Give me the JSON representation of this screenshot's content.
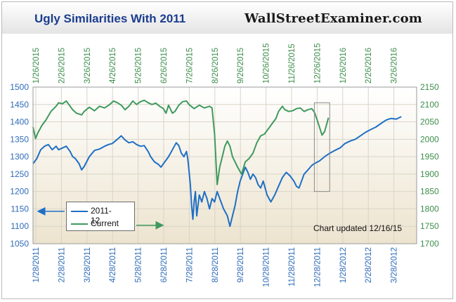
{
  "title": "Ugly Similarities With 2011",
  "brand": "WallStreetExaminer.com",
  "note": "Chart updated 12/16/15",
  "colors": {
    "series_2011": "#1f6fc5",
    "series_current": "#3e9a5d",
    "left_axis": "#2f6bb8",
    "right_axis": "#3d8d4a",
    "title": "#1b3d8f",
    "box": "#8a8a8a"
  },
  "chart_data": {
    "type": "line",
    "title": "Ugly Similarities With 2011",
    "x_top": {
      "ticks": [
        "1/26/2015",
        "2/26/2015",
        "3/26/2015",
        "4/26/2015",
        "5/26/2015",
        "6/26/2015",
        "7/26/2015",
        "8/26/2015",
        "9/26/2015",
        "10/26/2015",
        "11/26/2015",
        "12/26/2015",
        "1/26/2016",
        "2/26/2016",
        "3/26/2016"
      ]
    },
    "x_bottom": {
      "ticks": [
        "1/28/2011",
        "2/28/2011",
        "3/28/2011",
        "4/28/2011",
        "5/28/2011",
        "6/28/2011",
        "7/28/2011",
        "8/28/2011",
        "9/28/2011",
        "10/28/2011",
        "11/28/2011",
        "12/28/2011",
        "1/28/2012",
        "2/28/2012",
        "3/28/2012"
      ]
    },
    "y_left": {
      "min": 1050,
      "max": 1500,
      "ticks": [
        1050,
        1100,
        1150,
        1200,
        1250,
        1300,
        1350,
        1400,
        1450,
        1500
      ]
    },
    "y_right": {
      "min": 1700,
      "max": 2150,
      "ticks": [
        1700,
        1750,
        1800,
        1850,
        1900,
        1950,
        2000,
        2050,
        2100,
        2150
      ]
    },
    "grid": true,
    "legend": "bottom-left",
    "series": [
      {
        "name": "2011-12",
        "axis": "left",
        "points": [
          [
            0.0,
            1280
          ],
          [
            0.15,
            1295
          ],
          [
            0.3,
            1320
          ],
          [
            0.45,
            1330
          ],
          [
            0.6,
            1335
          ],
          [
            0.75,
            1320
          ],
          [
            0.9,
            1330
          ],
          [
            1.0,
            1320
          ],
          [
            1.15,
            1325
          ],
          [
            1.3,
            1330
          ],
          [
            1.45,
            1315
          ],
          [
            1.55,
            1300
          ],
          [
            1.65,
            1295
          ],
          [
            1.8,
            1280
          ],
          [
            1.9,
            1262
          ],
          [
            2.0,
            1272
          ],
          [
            2.2,
            1300
          ],
          [
            2.4,
            1318
          ],
          [
            2.6,
            1322
          ],
          [
            2.8,
            1330
          ],
          [
            2.95,
            1335
          ],
          [
            3.1,
            1338
          ],
          [
            3.3,
            1350
          ],
          [
            3.45,
            1360
          ],
          [
            3.6,
            1348
          ],
          [
            3.75,
            1340
          ],
          [
            3.9,
            1343
          ],
          [
            4.05,
            1335
          ],
          [
            4.2,
            1330
          ],
          [
            4.35,
            1332
          ],
          [
            4.5,
            1315
          ],
          [
            4.6,
            1300
          ],
          [
            4.75,
            1285
          ],
          [
            4.9,
            1278
          ],
          [
            5.0,
            1270
          ],
          [
            5.15,
            1285
          ],
          [
            5.3,
            1300
          ],
          [
            5.45,
            1320
          ],
          [
            5.6,
            1340
          ],
          [
            5.7,
            1332
          ],
          [
            5.8,
            1310
          ],
          [
            5.9,
            1300
          ],
          [
            6.0,
            1315
          ],
          [
            6.05,
            1295
          ],
          [
            6.1,
            1260
          ],
          [
            6.15,
            1220
          ],
          [
            6.2,
            1160
          ],
          [
            6.25,
            1120
          ],
          [
            6.3,
            1170
          ],
          [
            6.35,
            1200
          ],
          [
            6.4,
            1130
          ],
          [
            6.5,
            1190
          ],
          [
            6.6,
            1170
          ],
          [
            6.7,
            1200
          ],
          [
            6.8,
            1180
          ],
          [
            6.9,
            1150
          ],
          [
            7.0,
            1180
          ],
          [
            7.1,
            1170
          ],
          [
            7.2,
            1200
          ],
          [
            7.3,
            1180
          ],
          [
            7.45,
            1150
          ],
          [
            7.6,
            1130
          ],
          [
            7.7,
            1100
          ],
          [
            7.8,
            1130
          ],
          [
            7.9,
            1160
          ],
          [
            8.0,
            1200
          ],
          [
            8.1,
            1230
          ],
          [
            8.2,
            1250
          ],
          [
            8.3,
            1270
          ],
          [
            8.4,
            1255
          ],
          [
            8.5,
            1235
          ],
          [
            8.6,
            1250
          ],
          [
            8.7,
            1240
          ],
          [
            8.8,
            1220
          ],
          [
            8.9,
            1210
          ],
          [
            9.0,
            1230
          ],
          [
            9.15,
            1190
          ],
          [
            9.3,
            1170
          ],
          [
            9.45,
            1190
          ],
          [
            9.6,
            1215
          ],
          [
            9.75,
            1240
          ],
          [
            9.9,
            1255
          ],
          [
            10.05,
            1245
          ],
          [
            10.2,
            1230
          ],
          [
            10.3,
            1215
          ],
          [
            10.4,
            1210
          ],
          [
            10.5,
            1230
          ],
          [
            10.6,
            1250
          ],
          [
            10.75,
            1262
          ],
          [
            10.9,
            1275
          ],
          [
            11.0,
            1280
          ],
          [
            11.2,
            1288
          ],
          [
            11.4,
            1300
          ],
          [
            11.6,
            1310
          ],
          [
            11.8,
            1318
          ],
          [
            12.0,
            1325
          ],
          [
            12.2,
            1338
          ],
          [
            12.4,
            1345
          ],
          [
            12.6,
            1350
          ],
          [
            12.8,
            1360
          ],
          [
            13.0,
            1370
          ],
          [
            13.2,
            1378
          ],
          [
            13.4,
            1385
          ],
          [
            13.6,
            1395
          ],
          [
            13.8,
            1405
          ],
          [
            14.0,
            1410
          ],
          [
            14.2,
            1408
          ],
          [
            14.4,
            1415
          ]
        ]
      },
      {
        "name": "Current",
        "axis": "right",
        "points": [
          [
            0.0,
            2035
          ],
          [
            0.1,
            2002
          ],
          [
            0.2,
            2020
          ],
          [
            0.35,
            2040
          ],
          [
            0.5,
            2055
          ],
          [
            0.7,
            2080
          ],
          [
            0.9,
            2095
          ],
          [
            1.0,
            2105
          ],
          [
            1.15,
            2102
          ],
          [
            1.3,
            2110
          ],
          [
            1.45,
            2095
          ],
          [
            1.55,
            2085
          ],
          [
            1.7,
            2075
          ],
          [
            1.9,
            2070
          ],
          [
            2.0,
            2080
          ],
          [
            2.2,
            2092
          ],
          [
            2.4,
            2082
          ],
          [
            2.6,
            2095
          ],
          [
            2.8,
            2090
          ],
          [
            3.0,
            2100
          ],
          [
            3.15,
            2110
          ],
          [
            3.3,
            2105
          ],
          [
            3.45,
            2098
          ],
          [
            3.6,
            2085
          ],
          [
            3.75,
            2095
          ],
          [
            3.9,
            2110
          ],
          [
            4.05,
            2100
          ],
          [
            4.2,
            2108
          ],
          [
            4.35,
            2112
          ],
          [
            4.5,
            2105
          ],
          [
            4.65,
            2100
          ],
          [
            4.8,
            2104
          ],
          [
            4.95,
            2095
          ],
          [
            5.1,
            2088
          ],
          [
            5.2,
            2075
          ],
          [
            5.3,
            2098
          ],
          [
            5.45,
            2075
          ],
          [
            5.55,
            2080
          ],
          [
            5.7,
            2098
          ],
          [
            5.85,
            2108
          ],
          [
            6.0,
            2110
          ],
          [
            6.1,
            2100
          ],
          [
            6.3,
            2088
          ],
          [
            6.5,
            2098
          ],
          [
            6.7,
            2090
          ],
          [
            6.9,
            2095
          ],
          [
            7.0,
            2090
          ],
          [
            7.1,
            2015
          ],
          [
            7.15,
            1940
          ],
          [
            7.2,
            1870
          ],
          [
            7.3,
            1920
          ],
          [
            7.4,
            1950
          ],
          [
            7.5,
            1980
          ],
          [
            7.6,
            1995
          ],
          [
            7.7,
            1980
          ],
          [
            7.8,
            1950
          ],
          [
            8.0,
            1920
          ],
          [
            8.15,
            1900
          ],
          [
            8.3,
            1935
          ],
          [
            8.45,
            1945
          ],
          [
            8.6,
            1960
          ],
          [
            8.75,
            1990
          ],
          [
            8.9,
            2010
          ],
          [
            9.05,
            2015
          ],
          [
            9.2,
            2030
          ],
          [
            9.35,
            2045
          ],
          [
            9.5,
            2060
          ],
          [
            9.6,
            2080
          ],
          [
            9.75,
            2095
          ],
          [
            9.85,
            2085
          ],
          [
            10.0,
            2080
          ],
          [
            10.15,
            2082
          ],
          [
            10.3,
            2088
          ],
          [
            10.45,
            2090
          ],
          [
            10.6,
            2080
          ],
          [
            10.75,
            2085
          ],
          [
            10.9,
            2088
          ],
          [
            11.0,
            2078
          ],
          [
            11.1,
            2058
          ],
          [
            11.2,
            2035
          ],
          [
            11.3,
            2012
          ],
          [
            11.4,
            2022
          ],
          [
            11.5,
            2048
          ],
          [
            11.55,
            2062
          ]
        ]
      }
    ],
    "annotation_box": {
      "x": [
        11.0,
        11.6
      ],
      "y_left": [
        1200,
        1455
      ]
    },
    "legend_arrows": [
      {
        "series": "2011-12",
        "direction": "left",
        "y_left": 1143
      },
      {
        "series": "Current",
        "direction": "right",
        "y_left": 1103
      }
    ]
  }
}
